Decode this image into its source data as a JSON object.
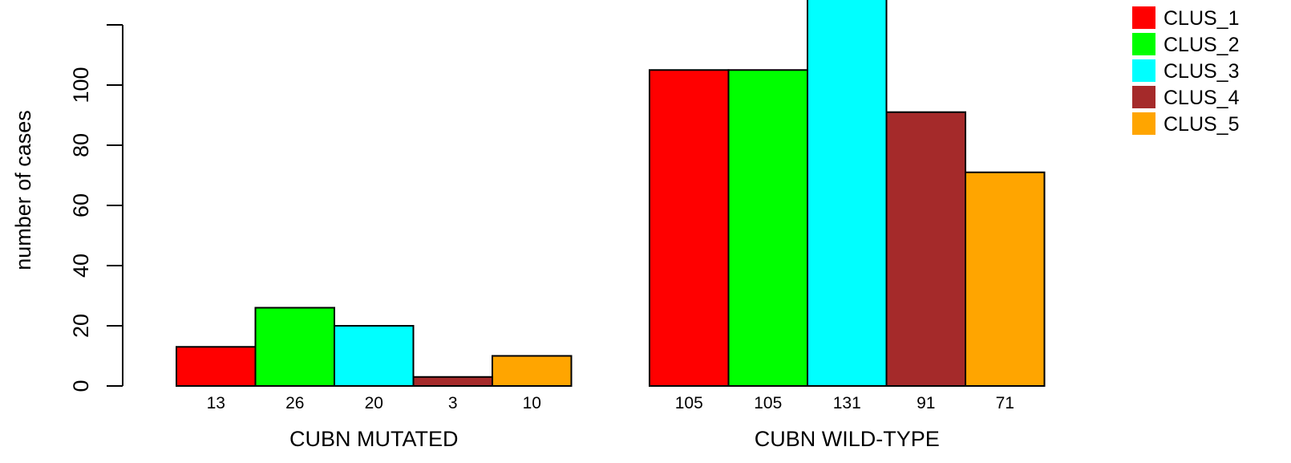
{
  "chart_data": {
    "type": "bar",
    "ylabel": "number of cases",
    "ylim": [
      0,
      120
    ],
    "yticks": [
      0,
      20,
      40,
      60,
      80,
      100
    ],
    "grid": false,
    "legend_position": "top-right",
    "legend": [
      {
        "label": "CLUS_1",
        "color": "#ff0000"
      },
      {
        "label": "CLUS_2",
        "color": "#00ff00"
      },
      {
        "label": "CLUS_3",
        "color": "#00ffff"
      },
      {
        "label": "CLUS_4",
        "color": "#a52a2a"
      },
      {
        "label": "CLUS_5",
        "color": "#ffa500"
      }
    ],
    "groups": [
      {
        "label": "CUBN MUTATED",
        "values": [
          13,
          26,
          20,
          3,
          10
        ],
        "value_labels": [
          "13",
          "26",
          "20",
          "3",
          "10"
        ]
      },
      {
        "label": "CUBN WILD-TYPE",
        "values": [
          105,
          105,
          131,
          91,
          71
        ],
        "value_labels": [
          "105",
          "105",
          "131",
          "91",
          "71"
        ]
      }
    ]
  }
}
